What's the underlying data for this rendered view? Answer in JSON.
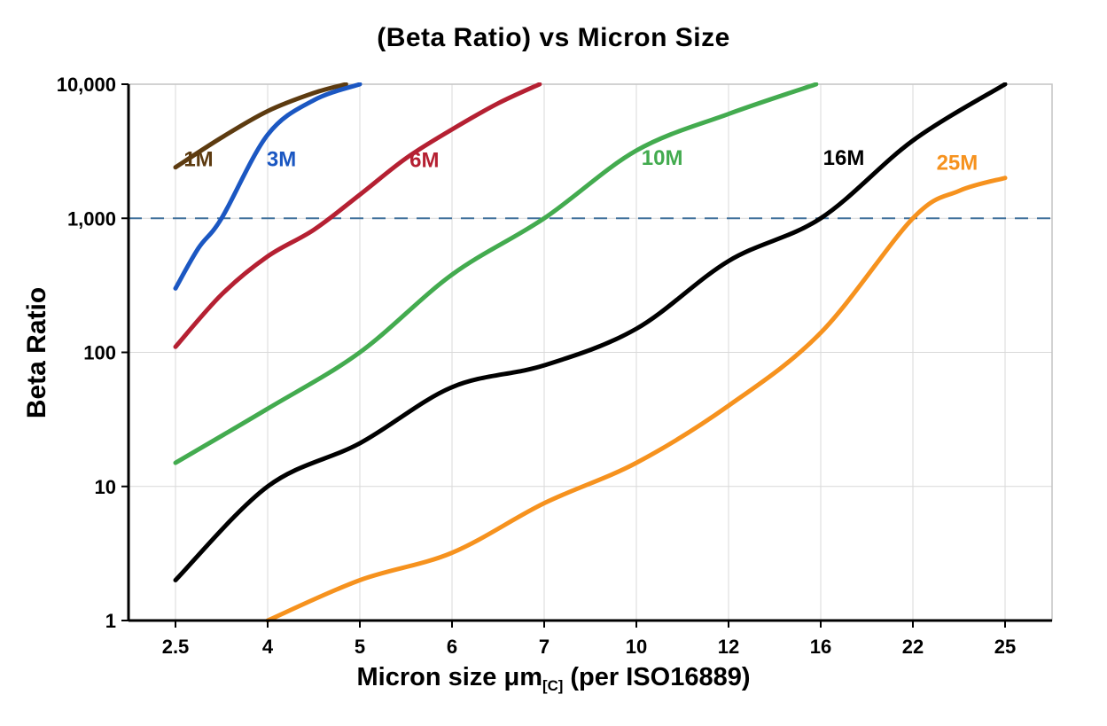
{
  "chart_data": {
    "type": "line",
    "title": "(Beta Ratio) vs Micron Size",
    "ylabel": "Beta Ratio",
    "xlabel_parts": [
      "Micron size μm",
      "[C]",
      " (per ISO16889)"
    ],
    "x_categories": [
      "2.5",
      "4",
      "5",
      "6",
      "7",
      "10",
      "12",
      "16",
      "22",
      "25"
    ],
    "y_scale": "log",
    "ylim": [
      1,
      10000
    ],
    "y_tick_values": [
      1,
      10,
      100,
      1000,
      10000
    ],
    "y_tick_labels": [
      "1",
      "10",
      "100",
      "1,000",
      "10,000"
    ],
    "grid": "on",
    "threshold_line": {
      "value": 1000,
      "style": "dashed",
      "color": "#40719c"
    },
    "colors": {
      "grid": "#d9d9d9",
      "border": "#c4c4c4",
      "axis": "#000000"
    },
    "series": [
      {
        "name": "1M",
        "color": "#5d3b10",
        "label_pos": [
          0.25,
          2450
        ],
        "points": [
          [
            0,
            2400
          ],
          [
            0.5,
            4000
          ],
          [
            1,
            6300
          ],
          [
            1.5,
            8600
          ],
          [
            1.85,
            10000
          ]
        ]
      },
      {
        "name": "3M",
        "color": "#1b57c2",
        "label_pos": [
          1.15,
          2450
        ],
        "points": [
          [
            0,
            300
          ],
          [
            0.25,
            600
          ],
          [
            0.5,
            1000
          ],
          [
            1,
            4200
          ],
          [
            1.5,
            7600
          ],
          [
            2.0,
            10000
          ]
        ]
      },
      {
        "name": "6M",
        "color": "#b52032",
        "label_pos": [
          2.7,
          2400
        ],
        "points": [
          [
            0,
            110
          ],
          [
            0.5,
            270
          ],
          [
            1,
            520
          ],
          [
            1.5,
            820
          ],
          [
            2,
            1500
          ],
          [
            2.5,
            2800
          ],
          [
            3,
            4600
          ],
          [
            3.5,
            7200
          ],
          [
            3.95,
            10000
          ]
        ]
      },
      {
        "name": "10M",
        "color": "#43ab4f",
        "label_pos": [
          5.28,
          2500
        ],
        "points": [
          [
            0,
            15
          ],
          [
            1,
            38
          ],
          [
            2,
            100
          ],
          [
            3,
            380
          ],
          [
            4,
            1000
          ],
          [
            5,
            3200
          ],
          [
            6,
            6000
          ],
          [
            6.95,
            10000
          ]
        ]
      },
      {
        "name": "16M",
        "color": "#000000",
        "label_pos": [
          7.25,
          2500
        ],
        "points": [
          [
            0,
            2
          ],
          [
            1,
            10
          ],
          [
            2,
            21
          ],
          [
            3,
            55
          ],
          [
            4,
            80
          ],
          [
            5,
            150
          ],
          [
            6,
            480
          ],
          [
            7,
            1000
          ],
          [
            8,
            3800
          ],
          [
            9,
            10000
          ]
        ]
      },
      {
        "name": "25M",
        "color": "#f6921e",
        "label_pos": [
          8.48,
          2300
        ],
        "points": [
          [
            1,
            1
          ],
          [
            2,
            2
          ],
          [
            3,
            3.2
          ],
          [
            4,
            7.5
          ],
          [
            5,
            15
          ],
          [
            6,
            40
          ],
          [
            7,
            140
          ],
          [
            8,
            1000
          ],
          [
            8.5,
            1600
          ],
          [
            9,
            2000
          ]
        ]
      }
    ]
  }
}
